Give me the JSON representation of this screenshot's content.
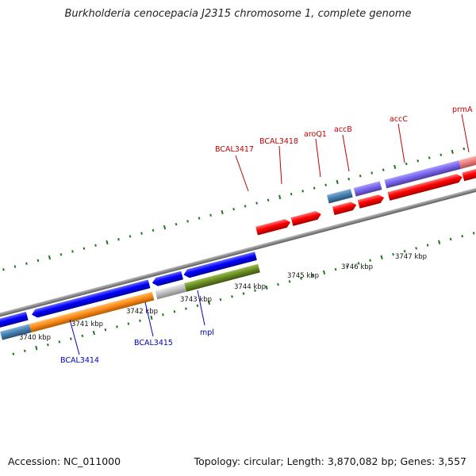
{
  "title": "Burkholderia cenocepacia J2315 chromosome 1, complete genome",
  "footer": {
    "accession": "Accession: NC_011000",
    "summary": "Topology: circular; Length: 3,870,082 bp; Genes: 3,557"
  },
  "colors": {
    "backbone": "#8a8a8a",
    "tick": "#1a7a1a",
    "gene_label_top": "#c00000",
    "gene_label_bottom": "#0000c0",
    "cds_forward": "#ff0000",
    "cds_reverse": "#0000ff",
    "feature_orange": "#ff8c1a",
    "feature_gray": "#c0c0c0",
    "feature_olive": "#6b8e23",
    "feature_steelblue": "#4682b4",
    "feature_purple": "#7b68ee",
    "feature_pink": "#f08080"
  },
  "scale_labels": [
    {
      "id": "kbp-3740",
      "text": "3740 kbp"
    },
    {
      "id": "kbp-3741",
      "text": "3741 kbp"
    },
    {
      "id": "kbp-3742",
      "text": "3742 kbp"
    },
    {
      "id": "kbp-3743",
      "text": "3743 kbp"
    },
    {
      "id": "kbp-3744",
      "text": "3744 kbp"
    },
    {
      "id": "kbp-3745",
      "text": "3745 kbp"
    },
    {
      "id": "kbp-3746",
      "text": "3746 kbp"
    },
    {
      "id": "kbp-3747",
      "text": "3747 kbp"
    }
  ],
  "gene_labels_top": [
    {
      "id": "BCAL3417",
      "text": "BCAL3417"
    },
    {
      "id": "BCAL3418",
      "text": "BCAL3418"
    },
    {
      "id": "aroQ1",
      "text": "aroQ1"
    },
    {
      "id": "accB",
      "text": "accB"
    },
    {
      "id": "accC",
      "text": "accC"
    },
    {
      "id": "prmA",
      "text": "prmA"
    }
  ],
  "gene_labels_bottom": [
    {
      "id": "BCAL3414",
      "text": "BCAL3414"
    },
    {
      "id": "BCAL3415",
      "text": "BCAL3415"
    },
    {
      "id": "mpl",
      "text": "mpl"
    }
  ]
}
